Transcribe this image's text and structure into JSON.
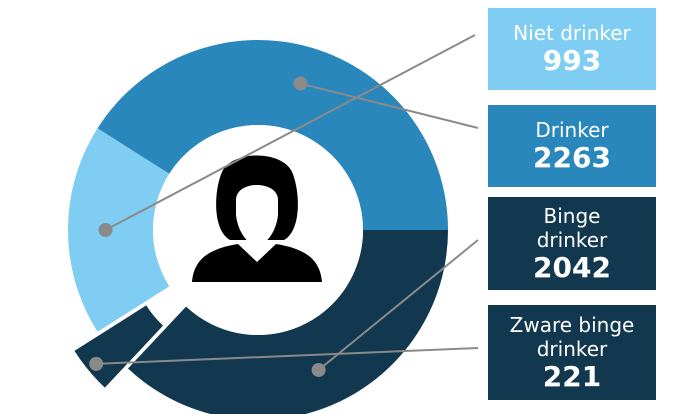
{
  "chart_data": {
    "type": "donut",
    "categories": [
      "Niet drinker",
      "Drinker",
      "Binge drinker",
      "Zware binge drinker"
    ],
    "values": [
      993,
      2263,
      2042,
      221
    ],
    "colors": [
      "#7fcdf3",
      "#2987bb",
      "#12384f",
      "#12384f"
    ]
  }
}
